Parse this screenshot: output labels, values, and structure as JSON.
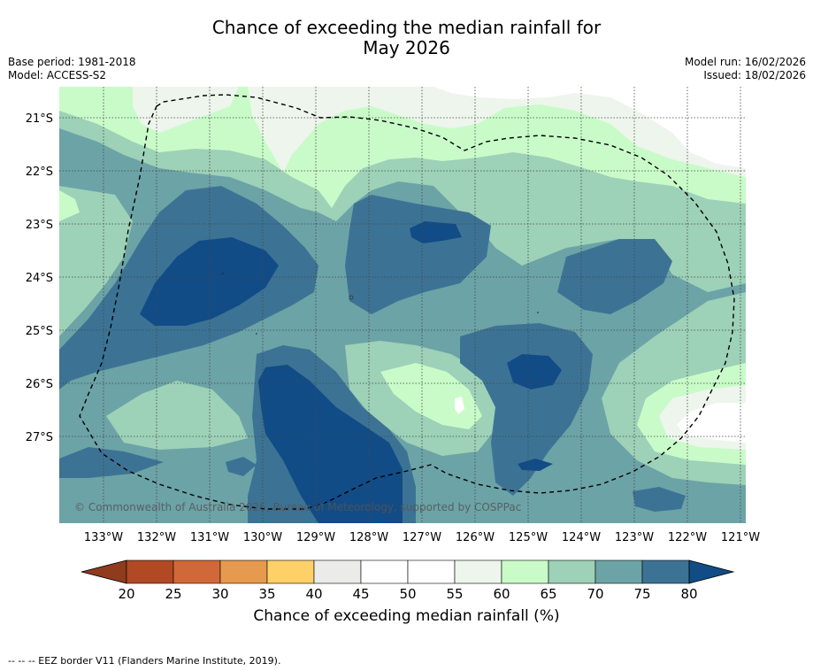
{
  "title_line1": "Chance of exceeding the median rainfall for",
  "title_line2": "May 2026",
  "meta": {
    "base_period": "Base period: 1981-2018",
    "model": "Model: ACCESS-S2",
    "model_run": "Model run: 16/02/2026",
    "issued": "Issued: 18/02/2026"
  },
  "map": {
    "lat_labels": [
      "21°S",
      "22°S",
      "23°S",
      "24°S",
      "25°S",
      "26°S",
      "27°S"
    ],
    "lon_labels": [
      "133°W",
      "132°W",
      "131°W",
      "130°W",
      "129°W",
      "128°W",
      "127°W",
      "126°W",
      "125°W",
      "124°W",
      "123°W",
      "122°W",
      "121°W"
    ],
    "copyright": "© Commonwealth of Australia 2026, Bureau of Meteorology, supported by COSPPac",
    "colors": {
      "c55_60": "#edf5ec",
      "c60_65": "#c9fbc9",
      "c65_70": "#9dd1b8",
      "c70_75": "#6ca3a6",
      "c75_80": "#3c7395",
      "c80": "#124c87",
      "water": "#ffffff"
    }
  },
  "colorbar": {
    "ticks": [
      "20",
      "25",
      "30",
      "35",
      "40",
      "45",
      "50",
      "55",
      "60",
      "65",
      "70",
      "75",
      "80"
    ],
    "colors": [
      "#8f3b1e",
      "#b04924",
      "#d1683a",
      "#e69a4d",
      "#fdd068",
      "#ebebea",
      "#ffffff",
      "#ffffff",
      "#edf5ec",
      "#c9fbc9",
      "#9dd1b8",
      "#6ca3a6",
      "#3c7395",
      "#124c87"
    ],
    "label": "Chance of exceeding median rainfall (%)"
  },
  "footnote": "--  --  -- EEZ border V11 (Flanders Marine Institute, 2019)."
}
